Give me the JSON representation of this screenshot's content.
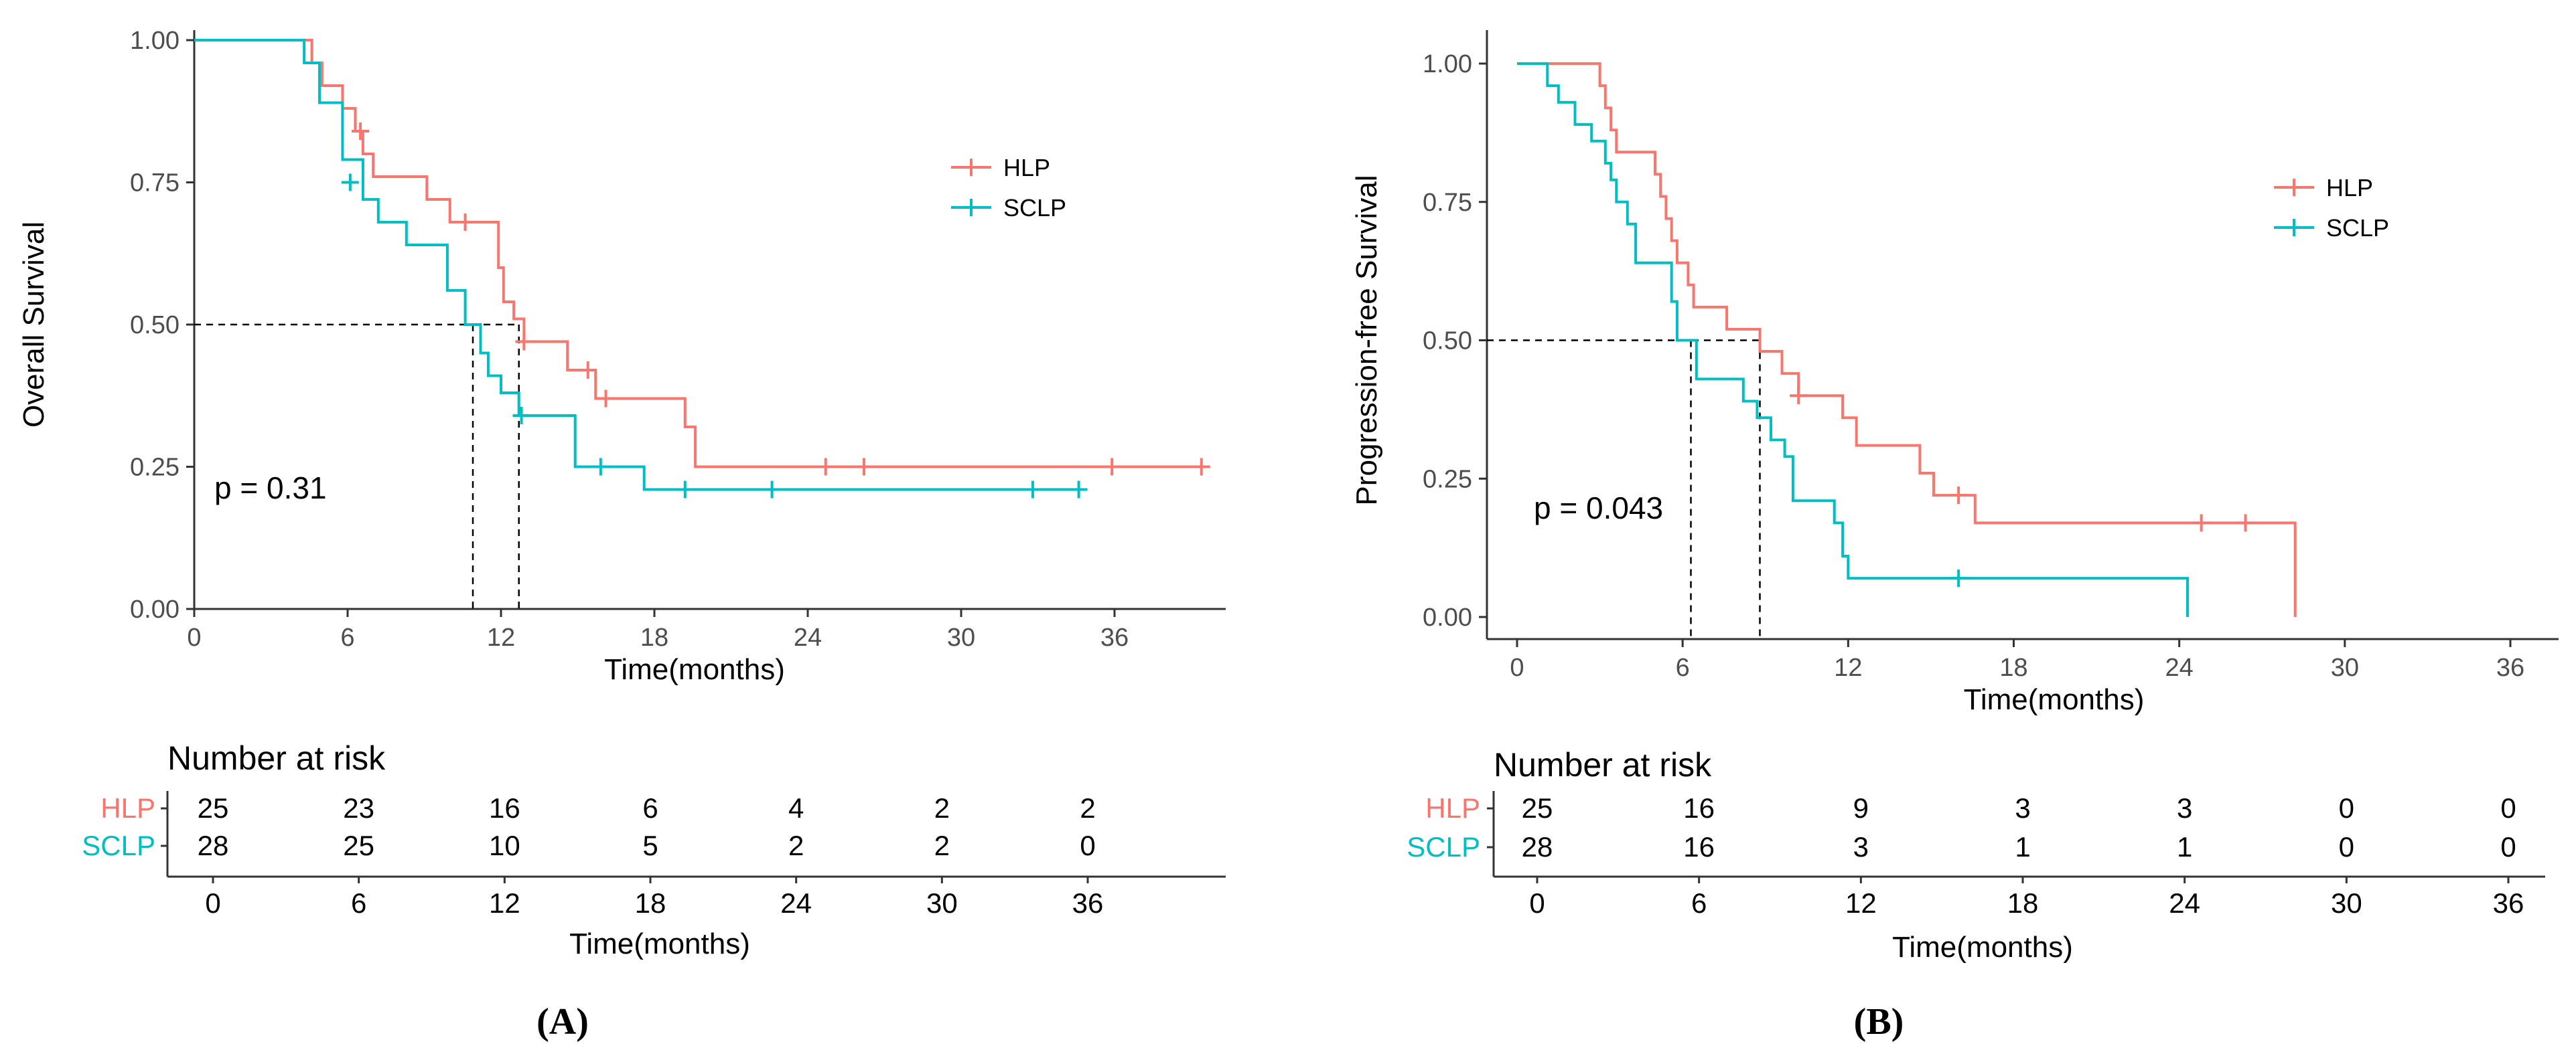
{
  "colors": {
    "HLP": "#F8766D",
    "SCLP": "#00BFC4",
    "axis": "#333333",
    "tick": "#4d4d4d"
  },
  "strata": [
    "HLP",
    "SCLP"
  ],
  "chart_data": [
    {
      "panel_label": "(A)",
      "type": "line",
      "subtype": "kaplan-meier",
      "xlabel": "Time(months)",
      "ylabel": "Overall Survival",
      "xlim": [
        0,
        40
      ],
      "ylim": [
        0,
        1
      ],
      "x_ticks": [
        0,
        6,
        12,
        18,
        24,
        30,
        36
      ],
      "x_tick_labels": [
        "0",
        "6",
        "12",
        "18",
        "24",
        "30",
        "36"
      ],
      "y_ticks": [
        0,
        0.25,
        0.5,
        0.75,
        1
      ],
      "y_tick_labels": [
        "0.00",
        "0.25",
        "0.50",
        "0.75",
        "1.00"
      ],
      "legend": [
        "HLP",
        "SCLP"
      ],
      "legend_position": "top-right",
      "pvalue_text": "p = 0.31",
      "median_line": {
        "y": 0.5,
        "x_values": [
          10.9,
          12.7
        ]
      },
      "series": [
        {
          "name": "HLP",
          "steps": [
            [
              0,
              1
            ],
            [
              4.6,
              1
            ],
            [
              4.6,
              0.96
            ],
            [
              5.0,
              0.96
            ],
            [
              5.0,
              0.92
            ],
            [
              5.8,
              0.92
            ],
            [
              5.8,
              0.88
            ],
            [
              6.3,
              0.88
            ],
            [
              6.3,
              0.84
            ],
            [
              6.6,
              0.84
            ],
            [
              6.6,
              0.8
            ],
            [
              7.0,
              0.8
            ],
            [
              7.0,
              0.76
            ],
            [
              9.1,
              0.76
            ],
            [
              9.1,
              0.72
            ],
            [
              10.0,
              0.72
            ],
            [
              10.0,
              0.68
            ],
            [
              11.9,
              0.68
            ],
            [
              11.9,
              0.6
            ],
            [
              12.1,
              0.6
            ],
            [
              12.1,
              0.54
            ],
            [
              12.5,
              0.54
            ],
            [
              12.5,
              0.51
            ],
            [
              12.9,
              0.51
            ],
            [
              12.9,
              0.47
            ],
            [
              14.6,
              0.47
            ],
            [
              14.6,
              0.42
            ],
            [
              15.7,
              0.42
            ],
            [
              15.7,
              0.37
            ],
            [
              19.2,
              0.37
            ],
            [
              19.2,
              0.32
            ],
            [
              19.6,
              0.32
            ],
            [
              19.6,
              0.25
            ],
            [
              39.4,
              0.25
            ]
          ],
          "censor": [
            [
              6.5,
              0.84
            ],
            [
              10.6,
              0.68
            ],
            [
              12.9,
              0.47
            ],
            [
              15.4,
              0.42
            ],
            [
              16.1,
              0.37
            ],
            [
              24.7,
              0.25
            ],
            [
              26.2,
              0.25
            ],
            [
              35.9,
              0.25
            ],
            [
              39.4,
              0.25
            ]
          ]
        },
        {
          "name": "SCLP",
          "steps": [
            [
              0,
              1
            ],
            [
              4.3,
              1
            ],
            [
              4.3,
              0.96
            ],
            [
              4.9,
              0.96
            ],
            [
              4.9,
              0.89
            ],
            [
              5.8,
              0.89
            ],
            [
              5.8,
              0.79
            ],
            [
              6.6,
              0.79
            ],
            [
              6.6,
              0.72
            ],
            [
              7.2,
              0.72
            ],
            [
              7.2,
              0.68
            ],
            [
              8.3,
              0.68
            ],
            [
              8.3,
              0.64
            ],
            [
              9.9,
              0.64
            ],
            [
              9.9,
              0.56
            ],
            [
              10.6,
              0.56
            ],
            [
              10.6,
              0.5
            ],
            [
              11.2,
              0.5
            ],
            [
              11.2,
              0.45
            ],
            [
              11.5,
              0.45
            ],
            [
              11.5,
              0.41
            ],
            [
              12.0,
              0.41
            ],
            [
              12.0,
              0.38
            ],
            [
              12.7,
              0.38
            ],
            [
              12.7,
              0.34
            ],
            [
              14.9,
              0.34
            ],
            [
              14.9,
              0.25
            ],
            [
              17.6,
              0.25
            ],
            [
              17.6,
              0.21
            ],
            [
              34.6,
              0.21
            ]
          ],
          "censor": [
            [
              6.1,
              0.75
            ],
            [
              12.8,
              0.34
            ],
            [
              15.9,
              0.25
            ],
            [
              19.2,
              0.21
            ],
            [
              22.6,
              0.21
            ],
            [
              32.8,
              0.21
            ],
            [
              34.6,
              0.21
            ]
          ]
        }
      ],
      "risk_table": {
        "title": "Number at risk",
        "xlabel": "Time(months)",
        "times": [
          "0",
          "6",
          "12",
          "18",
          "24",
          "30",
          "36"
        ],
        "rows": [
          {
            "name": "HLP",
            "values": [
              "25",
              "23",
              "16",
              "6",
              "4",
              "2",
              "2"
            ]
          },
          {
            "name": "SCLP",
            "values": [
              "28",
              "25",
              "10",
              "5",
              "2",
              "2",
              "0"
            ]
          }
        ]
      }
    },
    {
      "panel_label": "(B)",
      "type": "line",
      "subtype": "kaplan-meier",
      "xlabel": "Time(months)",
      "ylabel": "Progression-free Survival",
      "xlim": [
        0,
        36
      ],
      "ylim": [
        0,
        1
      ],
      "x_ticks": [
        0,
        6,
        12,
        18,
        24,
        30,
        36
      ],
      "x_tick_labels": [
        "0",
        "6",
        "12",
        "18",
        "24",
        "30",
        "36"
      ],
      "y_ticks": [
        0,
        0.25,
        0.5,
        0.75,
        1
      ],
      "y_tick_labels": [
        "0.00",
        "0.25",
        "0.50",
        "0.75",
        "1.00"
      ],
      "legend": [
        "HLP",
        "SCLP"
      ],
      "legend_position": "top-right",
      "pvalue_text": "p = 0.043",
      "median_line": {
        "y": 0.5,
        "x_values": [
          6.3,
          8.8
        ]
      },
      "series": [
        {
          "name": "HLP",
          "steps": [
            [
              0,
              1
            ],
            [
              3.0,
              1
            ],
            [
              3.0,
              0.96
            ],
            [
              3.2,
              0.96
            ],
            [
              3.2,
              0.92
            ],
            [
              3.4,
              0.92
            ],
            [
              3.4,
              0.88
            ],
            [
              3.6,
              0.88
            ],
            [
              3.6,
              0.84
            ],
            [
              5.0,
              0.84
            ],
            [
              5.0,
              0.8
            ],
            [
              5.2,
              0.8
            ],
            [
              5.2,
              0.76
            ],
            [
              5.4,
              0.76
            ],
            [
              5.4,
              0.72
            ],
            [
              5.6,
              0.72
            ],
            [
              5.6,
              0.68
            ],
            [
              5.8,
              0.68
            ],
            [
              5.8,
              0.64
            ],
            [
              6.2,
              0.64
            ],
            [
              6.2,
              0.6
            ],
            [
              6.4,
              0.6
            ],
            [
              6.4,
              0.56
            ],
            [
              7.6,
              0.56
            ],
            [
              7.6,
              0.52
            ],
            [
              8.8,
              0.52
            ],
            [
              8.8,
              0.48
            ],
            [
              9.6,
              0.48
            ],
            [
              9.6,
              0.44
            ],
            [
              10.2,
              0.44
            ],
            [
              10.2,
              0.4
            ],
            [
              11.8,
              0.4
            ],
            [
              11.8,
              0.36
            ],
            [
              12.3,
              0.36
            ],
            [
              12.3,
              0.31
            ],
            [
              14.6,
              0.31
            ],
            [
              14.6,
              0.26
            ],
            [
              15.1,
              0.26
            ],
            [
              15.1,
              0.22
            ],
            [
              16.6,
              0.22
            ],
            [
              16.6,
              0.17
            ],
            [
              28.2,
              0.17
            ],
            [
              28.2,
              0.0
            ]
          ],
          "censor": [
            [
              10.2,
              0.4
            ],
            [
              16.0,
              0.22
            ],
            [
              24.8,
              0.17
            ],
            [
              26.4,
              0.17
            ]
          ]
        },
        {
          "name": "SCLP",
          "steps": [
            [
              0,
              1
            ],
            [
              1.1,
              1
            ],
            [
              1.1,
              0.96
            ],
            [
              1.5,
              0.96
            ],
            [
              1.5,
              0.93
            ],
            [
              2.1,
              0.93
            ],
            [
              2.1,
              0.89
            ],
            [
              2.7,
              0.89
            ],
            [
              2.7,
              0.86
            ],
            [
              3.2,
              0.86
            ],
            [
              3.2,
              0.82
            ],
            [
              3.4,
              0.82
            ],
            [
              3.4,
              0.79
            ],
            [
              3.6,
              0.79
            ],
            [
              3.6,
              0.75
            ],
            [
              4.0,
              0.75
            ],
            [
              4.0,
              0.71
            ],
            [
              4.3,
              0.71
            ],
            [
              4.3,
              0.64
            ],
            [
              5.6,
              0.64
            ],
            [
              5.6,
              0.57
            ],
            [
              5.8,
              0.57
            ],
            [
              5.8,
              0.5
            ],
            [
              6.5,
              0.5
            ],
            [
              6.5,
              0.43
            ],
            [
              8.2,
              0.43
            ],
            [
              8.2,
              0.39
            ],
            [
              8.7,
              0.39
            ],
            [
              8.7,
              0.36
            ],
            [
              9.2,
              0.36
            ],
            [
              9.2,
              0.32
            ],
            [
              9.7,
              0.32
            ],
            [
              9.7,
              0.29
            ],
            [
              10.0,
              0.29
            ],
            [
              10.0,
              0.21
            ],
            [
              11.5,
              0.21
            ],
            [
              11.5,
              0.17
            ],
            [
              11.8,
              0.17
            ],
            [
              11.8,
              0.11
            ],
            [
              12.0,
              0.11
            ],
            [
              12.0,
              0.07
            ],
            [
              24.3,
              0.07
            ],
            [
              24.3,
              0.0
            ]
          ],
          "censor": [
            [
              16.0,
              0.07
            ]
          ]
        }
      ],
      "risk_table": {
        "title": "Number at risk",
        "xlabel": "Time(months)",
        "times": [
          "0",
          "6",
          "12",
          "18",
          "24",
          "30",
          "36"
        ],
        "rows": [
          {
            "name": "HLP",
            "values": [
              "25",
              "16",
              "9",
              "3",
              "3",
              "0",
              "0"
            ]
          },
          {
            "name": "SCLP",
            "values": [
              "28",
              "16",
              "3",
              "1",
              "1",
              "0",
              "0"
            ]
          }
        ]
      }
    }
  ]
}
